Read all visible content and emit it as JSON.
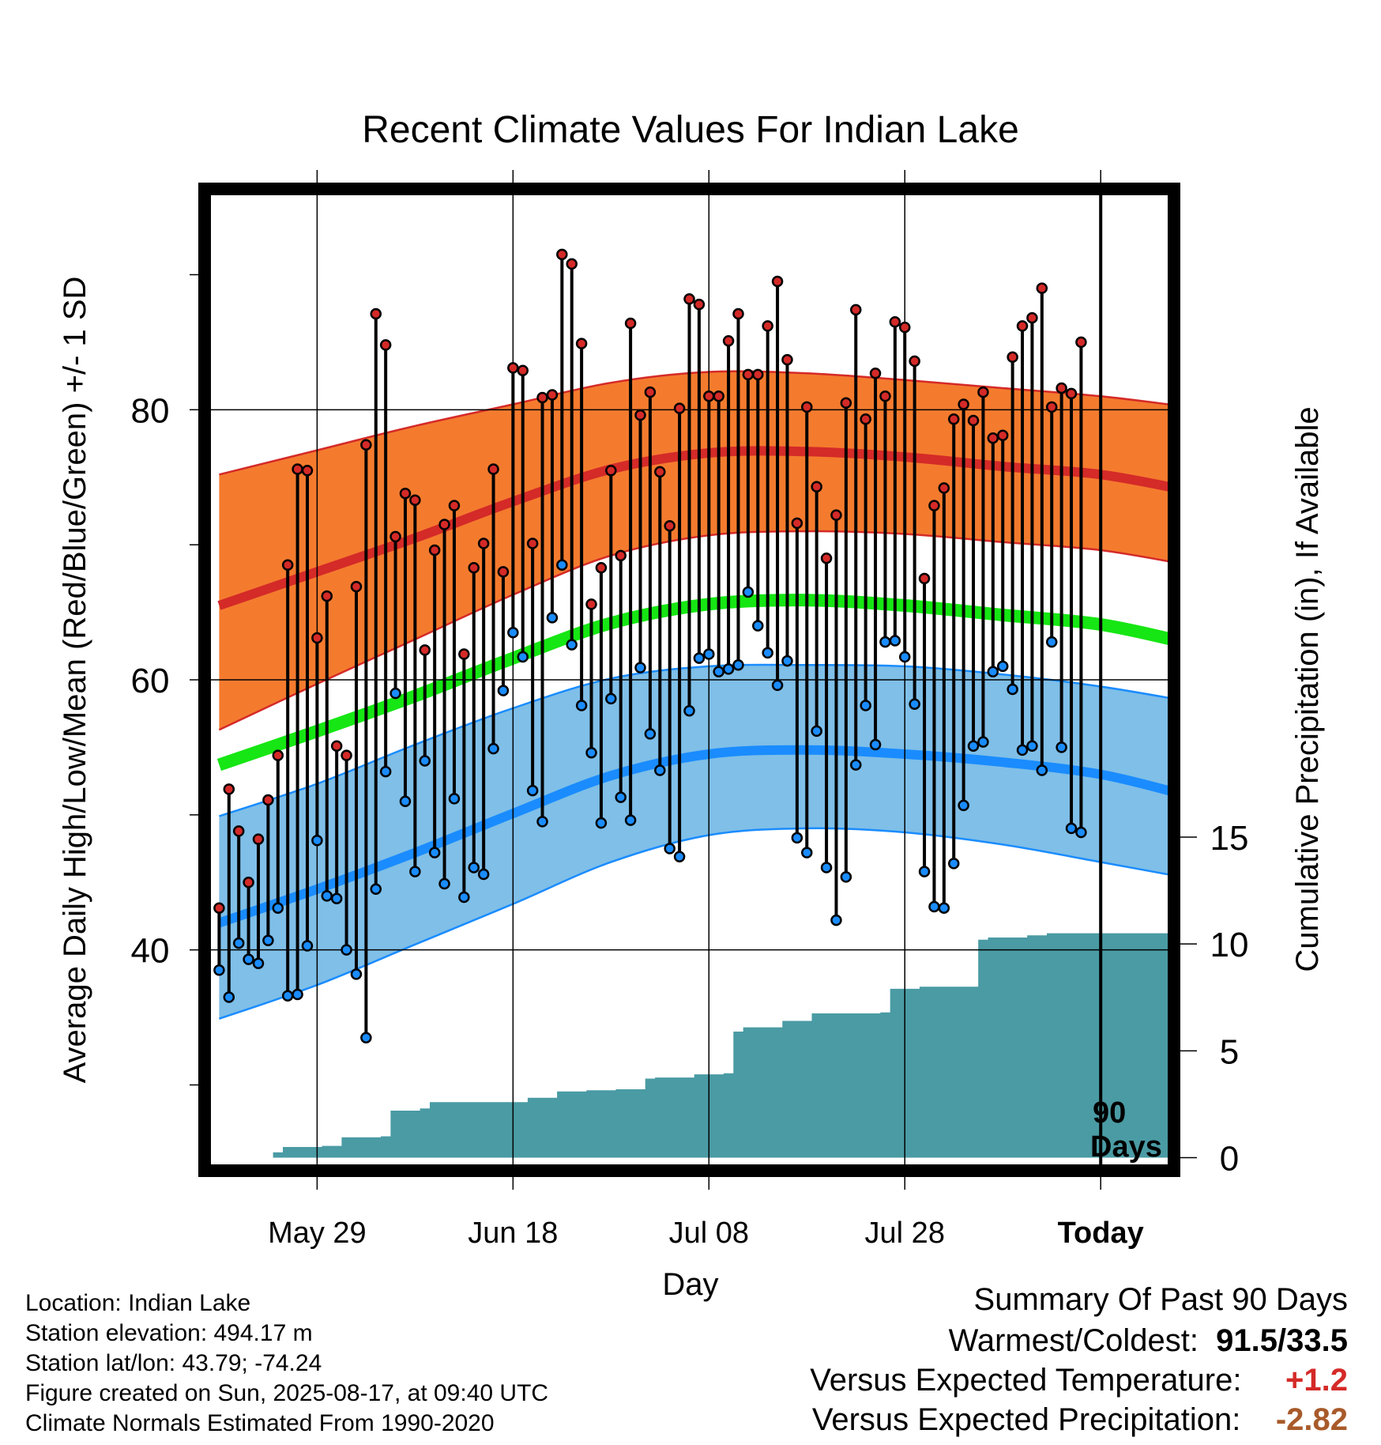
{
  "chart_data": {
    "type": "line",
    "title": "Recent Climate Values For Indian Lake",
    "xlabel": "Day",
    "ylabel": "Average Daily High/Low/Mean (Red/Blue/Green) +/- 1 SD",
    "ylabel_right": "Cumulative Precipitation (in), If Available",
    "ylim": [
      24,
      96
    ],
    "ylim_right": [
      -0.5,
      45
    ],
    "x_range_days": [
      -90,
      -1,
      7
    ],
    "x_ticks": [
      {
        "day": -80,
        "label": "May 29"
      },
      {
        "day": -60,
        "label": "Jun 18"
      },
      {
        "day": -40,
        "label": "Jul 08"
      },
      {
        "day": -20,
        "label": "Jul 28"
      },
      {
        "day": 0,
        "label": "Today"
      }
    ],
    "y_ticks": [
      40,
      60,
      80
    ],
    "y_minor_ticks": [
      30,
      50,
      70,
      90
    ],
    "y_ticks_right": [
      0,
      5,
      10,
      15
    ],
    "today_marker": {
      "day": 0,
      "label_line1": "90",
      "label_line2": "Days"
    },
    "normals": {
      "days": [
        -90,
        -80,
        -70,
        -60,
        -50,
        -40,
        -30,
        -20,
        -10,
        0,
        9
      ],
      "high_mean": [
        65.5,
        68.0,
        70.5,
        73.2,
        75.6,
        76.8,
        76.9,
        76.5,
        75.8,
        75.2,
        74.0
      ],
      "high_upper": [
        75.2,
        77.0,
        78.8,
        80.4,
        82.0,
        82.8,
        82.7,
        82.2,
        81.6,
        81.0,
        80.2
      ],
      "high_lower": [
        56.3,
        59.7,
        63.0,
        66.3,
        69.2,
        70.7,
        71.0,
        70.8,
        70.2,
        69.6,
        68.5
      ],
      "low_mean": [
        42.0,
        44.5,
        47.2,
        50.1,
        52.9,
        54.5,
        54.8,
        54.5,
        53.9,
        53.0,
        51.4
      ],
      "low_upper": [
        49.9,
        52.3,
        55.2,
        57.9,
        60.1,
        61.0,
        61.1,
        61.0,
        60.4,
        59.5,
        58.4
      ],
      "low_lower": [
        34.9,
        37.4,
        40.4,
        43.4,
        46.5,
        48.5,
        49.0,
        48.7,
        47.8,
        46.5,
        45.3
      ],
      "mean_mean": [
        53.7,
        56.2,
        58.8,
        61.6,
        64.2,
        65.6,
        65.9,
        65.5,
        64.8,
        64.1,
        62.7
      ]
    },
    "series": [
      {
        "name": "High",
        "values": [
          43.1,
          51.9,
          48.8,
          45.0,
          48.2,
          51.1,
          54.4,
          68.5,
          75.6,
          75.5,
          63.1,
          66.2,
          55.1,
          54.4,
          66.9,
          77.4,
          87.1,
          84.8,
          70.6,
          73.8,
          73.3,
          62.2,
          69.6,
          71.5,
          72.9,
          61.9,
          68.3,
          70.1,
          75.6,
          68.0,
          83.1,
          82.9,
          70.1,
          80.9,
          81.1,
          91.5,
          90.8,
          84.9,
          65.6,
          68.3,
          75.5,
          69.2,
          86.4,
          79.6,
          81.3,
          75.4,
          71.4,
          80.1,
          88.2,
          87.8,
          81.0,
          81.0,
          85.1,
          87.1,
          82.6,
          82.6,
          86.2,
          89.5,
          83.7,
          71.6,
          80.2,
          74.3,
          69.0,
          72.2,
          80.5,
          87.4,
          79.3,
          82.7,
          81.0,
          86.5,
          86.1,
          83.6,
          67.5,
          72.9,
          74.2,
          79.3,
          80.4,
          79.2,
          81.3,
          77.9,
          78.1,
          83.9,
          86.2,
          86.8,
          89.0,
          80.2,
          81.6,
          81.2,
          85.0
        ]
      },
      {
        "name": "Low",
        "values": [
          38.5,
          36.5,
          40.5,
          39.3,
          39.0,
          40.7,
          43.1,
          36.6,
          36.7,
          40.3,
          48.1,
          44.0,
          43.8,
          40.0,
          38.2,
          33.5,
          44.5,
          53.2,
          59.0,
          51.0,
          45.8,
          54.0,
          47.2,
          44.9,
          51.2,
          43.9,
          46.1,
          45.6,
          54.9,
          59.2,
          63.5,
          61.7,
          51.8,
          49.5,
          64.6,
          68.5,
          62.6,
          58.1,
          54.6,
          49.4,
          58.6,
          51.3,
          49.6,
          60.9,
          56.0,
          53.3,
          47.5,
          46.9,
          57.7,
          61.6,
          61.9,
          60.6,
          60.8,
          61.1,
          66.5,
          64.0,
          62.0,
          59.6,
          61.4,
          48.3,
          47.2,
          56.2,
          46.1,
          42.2,
          45.4,
          53.7,
          58.1,
          55.2,
          62.8,
          62.9,
          61.7,
          58.2,
          45.8,
          43.2,
          43.1,
          46.4,
          50.7,
          55.1,
          55.4,
          60.6,
          61.0,
          59.3,
          54.8,
          55.1,
          53.3,
          62.8,
          55.0,
          49.0,
          48.7
        ]
      },
      {
        "name": "Cumulative Precipitation",
        "values": [
          0,
          0,
          0,
          0,
          0,
          0,
          0.25,
          0.5,
          0.5,
          0.5,
          0.5,
          0.55,
          0.55,
          0.95,
          0.95,
          0.95,
          0.95,
          1.0,
          2.2,
          2.2,
          2.2,
          2.3,
          2.6,
          2.6,
          2.6,
          2.6,
          2.6,
          2.6,
          2.6,
          2.6,
          2.6,
          2.6,
          2.8,
          2.8,
          2.8,
          3.1,
          3.1,
          3.1,
          3.15,
          3.15,
          3.15,
          3.2,
          3.2,
          3.2,
          3.7,
          3.75,
          3.75,
          3.75,
          3.75,
          3.9,
          3.9,
          3.9,
          3.95,
          5.9,
          6.1,
          6.1,
          6.1,
          6.1,
          6.4,
          6.4,
          6.4,
          6.75,
          6.75,
          6.75,
          6.75,
          6.75,
          6.75,
          6.75,
          6.8,
          7.9,
          7.9,
          7.9,
          8.0,
          8.0,
          8.0,
          8.0,
          8.0,
          8.0,
          10.2,
          10.3,
          10.3,
          10.3,
          10.3,
          10.4,
          10.4,
          10.5,
          10.5,
          10.5,
          10.5,
          10.5
        ]
      }
    ],
    "colors": {
      "high_band": "#f47b2e",
      "high_line": "#d42a28",
      "low_band": "#7fbfe8",
      "low_line": "#1a8cff",
      "mean_line": "#16e613",
      "precip": "#4a9ba4",
      "high_marker": "#d42a28",
      "low_marker": "#1a8cff"
    },
    "grid": true,
    "legend": "none"
  },
  "info": {
    "location": "Location: Indian Lake",
    "elevation": "Station elevation: 494.17 m",
    "latlon": "Station lat/lon: 43.79; -74.24",
    "created": "Figure created on Sun, 2025-08-17, at 09:40 UTC",
    "normals": "Climate Normals Estimated From 1990-2020"
  },
  "summary": {
    "heading": "Summary Of Past 90 Days",
    "warm_cold_label": "Warmest/Coldest:",
    "warm_cold_value": "91.5/33.5",
    "temp_label": "Versus Expected Temperature:",
    "temp_value": "+1.2",
    "temp_color": "#d42a28",
    "precip_label": "Versus Expected Precipitation:",
    "precip_value": "-2.82",
    "precip_color": "#a85a2a"
  }
}
